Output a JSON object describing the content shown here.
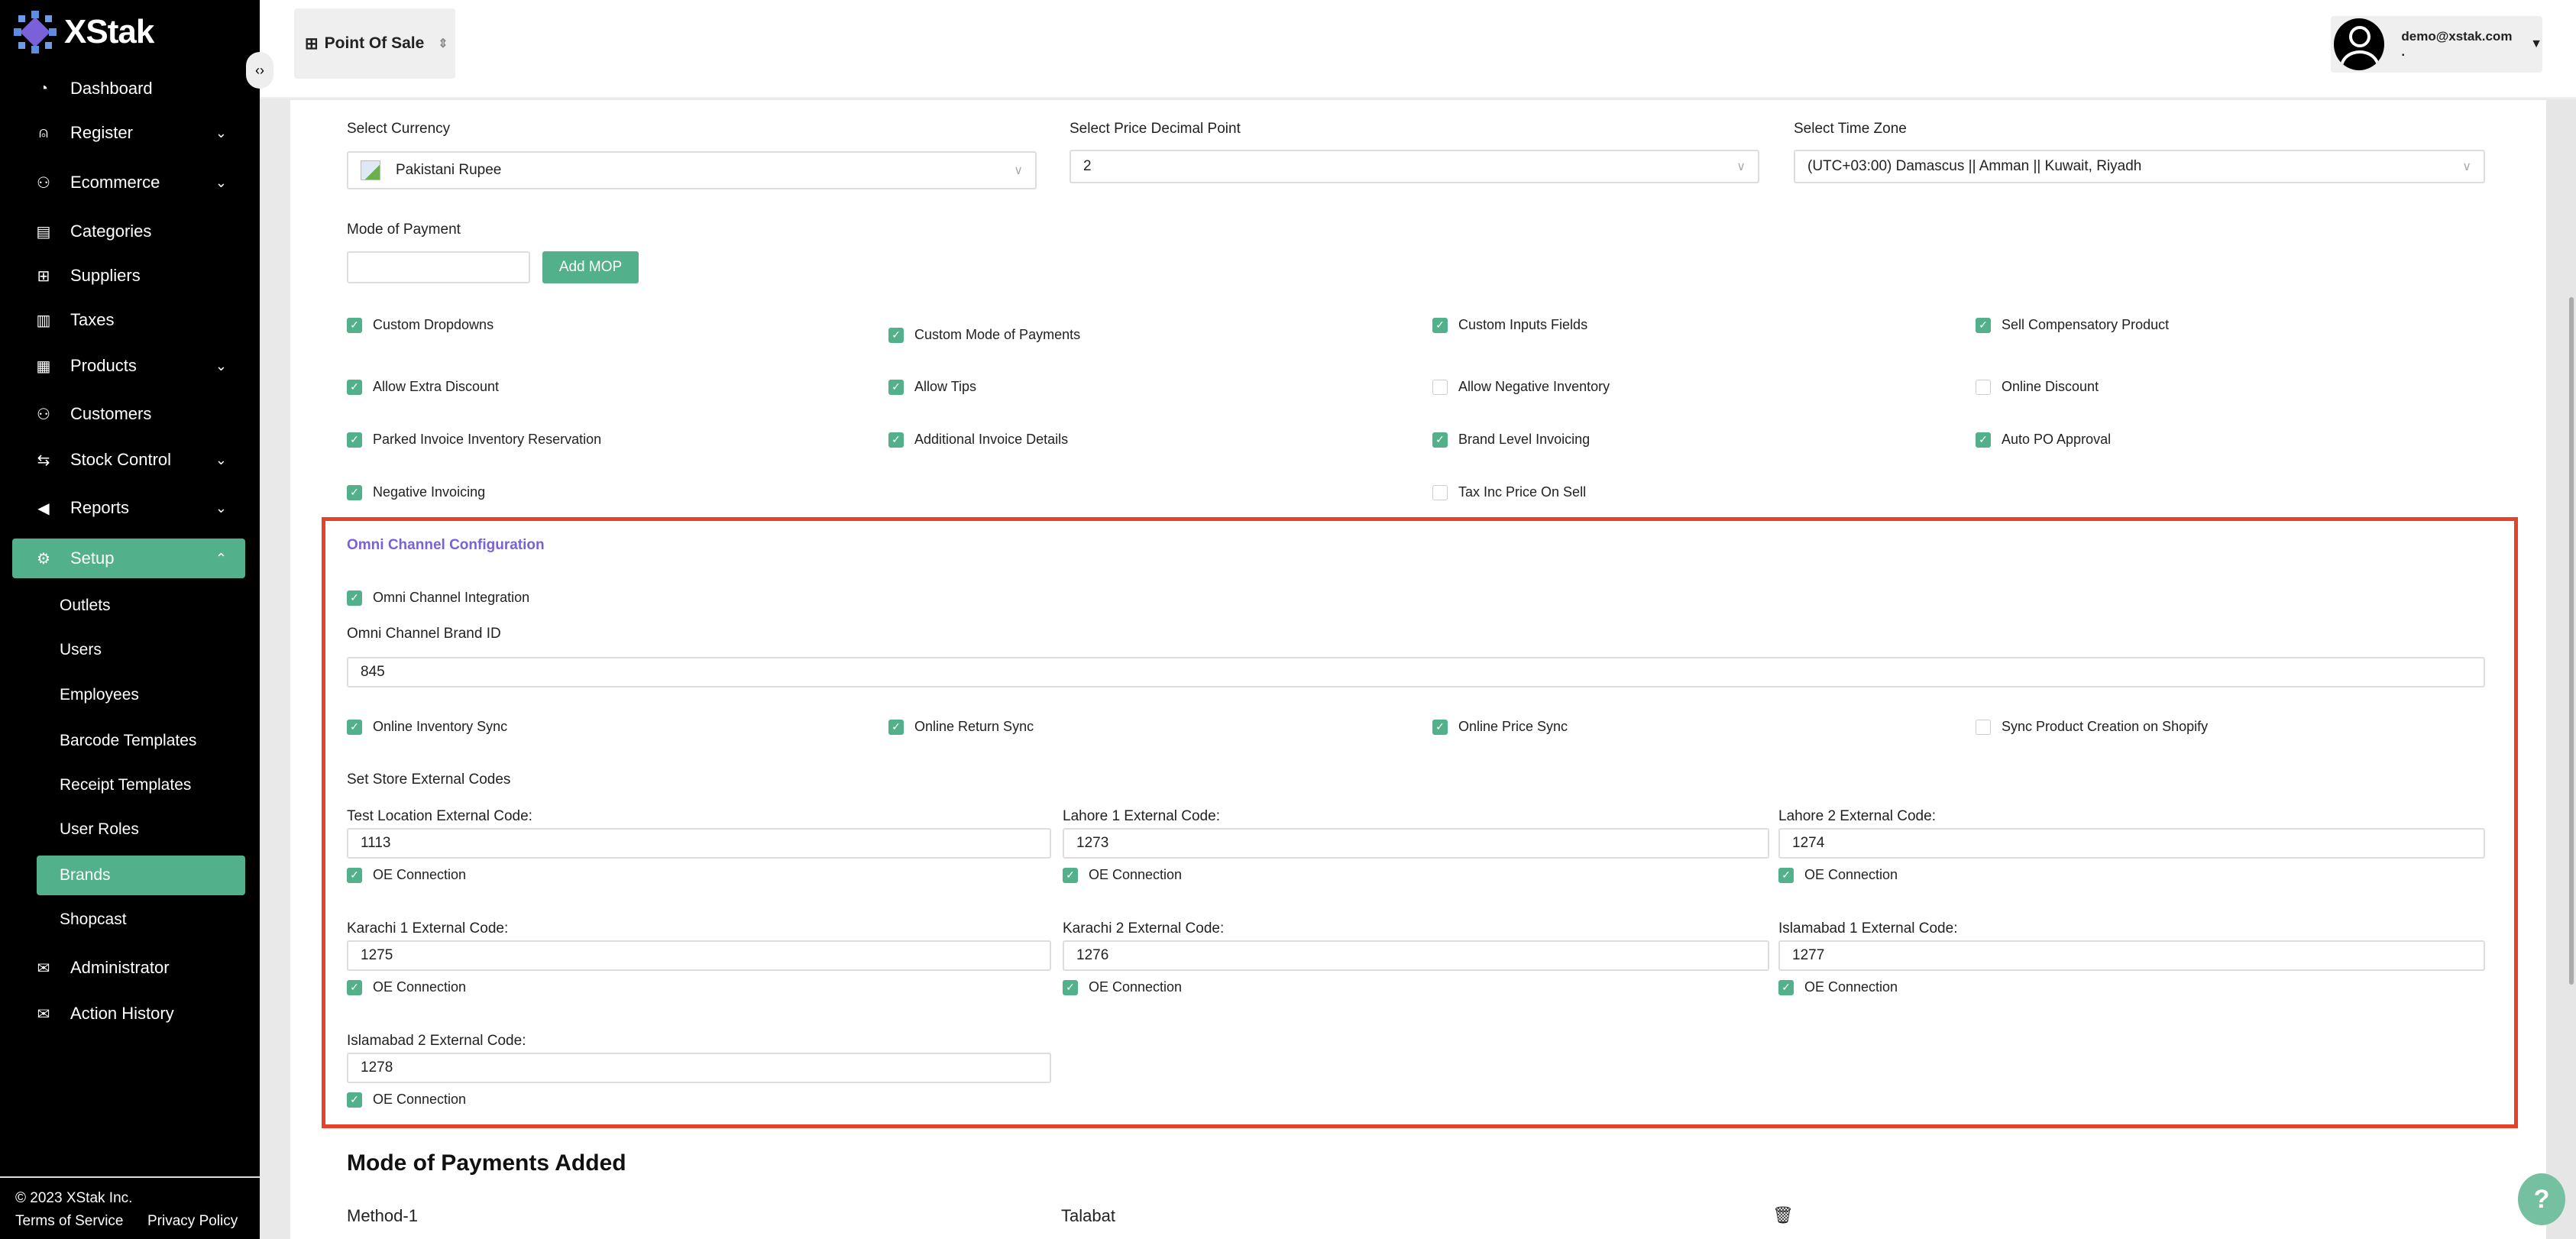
{
  "brand": {
    "name": "XStak"
  },
  "sidebar": {
    "items": [
      {
        "label": "Dashboard",
        "icon": "dashboard-icon",
        "glyph": "◔",
        "chevron": false
      },
      {
        "label": "Register",
        "icon": "user-icon",
        "glyph": "⍝",
        "chevron": true
      },
      {
        "label": "Ecommerce",
        "icon": "ecommerce-icon",
        "glyph": "⚇",
        "chevron": true
      },
      {
        "label": "Categories",
        "icon": "categories-icon",
        "glyph": "▤",
        "chevron": false
      },
      {
        "label": "Suppliers",
        "icon": "grid-icon",
        "glyph": "⊞",
        "chevron": false
      },
      {
        "label": "Taxes",
        "icon": "taxes-icon",
        "glyph": "▥",
        "chevron": false
      },
      {
        "label": "Products",
        "icon": "products-icon",
        "glyph": "▦",
        "chevron": true
      },
      {
        "label": "Customers",
        "icon": "customers-icon",
        "glyph": "⚇",
        "chevron": false
      },
      {
        "label": "Stock Control",
        "icon": "stock-icon",
        "glyph": "⇆",
        "chevron": true
      },
      {
        "label": "Reports",
        "icon": "reports-icon",
        "glyph": "◀",
        "chevron": true
      },
      {
        "label": "Setup",
        "icon": "gear-icon",
        "glyph": "⚙",
        "chevron": true,
        "expanded": true,
        "active": true
      }
    ],
    "setup_children": [
      {
        "label": "Outlets"
      },
      {
        "label": "Users"
      },
      {
        "label": "Employees"
      },
      {
        "label": "Barcode Templates"
      },
      {
        "label": "Receipt Templates"
      },
      {
        "label": "User Roles"
      },
      {
        "label": "Brands",
        "active": true
      },
      {
        "label": "Shopcast"
      }
    ],
    "bottom_items": [
      {
        "label": "Administrator",
        "icon": "mail-icon",
        "glyph": "✉"
      },
      {
        "label": "Action History",
        "icon": "history-icon",
        "glyph": "✉"
      }
    ],
    "footer": {
      "copyright": "© 2023 XStak Inc.",
      "terms": "Terms of Service",
      "privacy": "Privacy Policy"
    }
  },
  "header": {
    "app_switcher": "Point Of Sale",
    "user_email": "demo@xstak.com ."
  },
  "settings": {
    "currency": {
      "label": "Select Currency",
      "value": "Pakistani Rupee"
    },
    "decimal": {
      "label": "Select Price Decimal Point",
      "value": "2"
    },
    "timezone": {
      "label": "Select Time Zone",
      "value": "(UTC+03:00) Damascus || Amman || Kuwait, Riyadh"
    },
    "mop": {
      "label": "Mode of Payment",
      "value": "",
      "button": "Add MOP"
    },
    "checkboxes": [
      {
        "label": "Custom Dropdowns",
        "checked": true
      },
      {
        "label": "Custom Mode of Payments",
        "checked": true
      },
      {
        "label": "Custom Inputs Fields",
        "checked": true
      },
      {
        "label": "Sell Compensatory Product",
        "checked": true
      },
      {
        "label": "Allow Extra Discount",
        "checked": true
      },
      {
        "label": "Allow Tips",
        "checked": true
      },
      {
        "label": "Allow Negative Inventory",
        "checked": false
      },
      {
        "label": "Online Discount",
        "checked": false
      },
      {
        "label": "Parked Invoice Inventory Reservation",
        "checked": true
      },
      {
        "label": "Additional Invoice Details",
        "checked": true
      },
      {
        "label": "Brand Level Invoicing",
        "checked": true
      },
      {
        "label": "Auto PO Approval",
        "checked": true
      },
      {
        "label": "Negative Invoicing",
        "checked": true
      },
      {
        "label": "Tax Inc Price On Sell",
        "checked": false
      }
    ]
  },
  "omni": {
    "title": "Omni Channel Configuration",
    "integration": {
      "label": "Omni Channel Integration",
      "checked": true
    },
    "brand_id": {
      "label": "Omni Channel Brand ID",
      "value": "845"
    },
    "syncs": [
      {
        "label": "Online Inventory Sync",
        "checked": true
      },
      {
        "label": "Online Return Sync",
        "checked": true
      },
      {
        "label": "Online Price Sync",
        "checked": true
      },
      {
        "label": "Sync Product Creation on Shopify",
        "checked": false
      }
    ],
    "codes_title": "Set Store External Codes",
    "stores": [
      {
        "label": "Test Location External Code:",
        "value": "1113",
        "oe": "OE Connection",
        "checked": true
      },
      {
        "label": "Lahore 1 External Code:",
        "value": "1273",
        "oe": "OE Connection",
        "checked": true
      },
      {
        "label": "Lahore 2 External Code:",
        "value": "1274",
        "oe": "OE Connection",
        "checked": true
      },
      {
        "label": "Karachi 1 External Code:",
        "value": "1275",
        "oe": "OE Connection",
        "checked": true
      },
      {
        "label": "Karachi 2 External Code:",
        "value": "1276",
        "oe": "OE Connection",
        "checked": true
      },
      {
        "label": "Islamabad 1 External Code:",
        "value": "1277",
        "oe": "OE Connection",
        "checked": true
      },
      {
        "label": "Islamabad 2 External Code:",
        "value": "1278",
        "oe": "OE Connection",
        "checked": true
      }
    ]
  },
  "mop_added": {
    "title": "Mode of Payments Added",
    "rows": [
      {
        "name": "Method-1",
        "type": "Talabat"
      }
    ]
  },
  "help": {
    "label": "?"
  },
  "colors": {
    "accent": "#52b18a",
    "highlight": "#e8412a",
    "omni_title": "#7b61d9"
  }
}
